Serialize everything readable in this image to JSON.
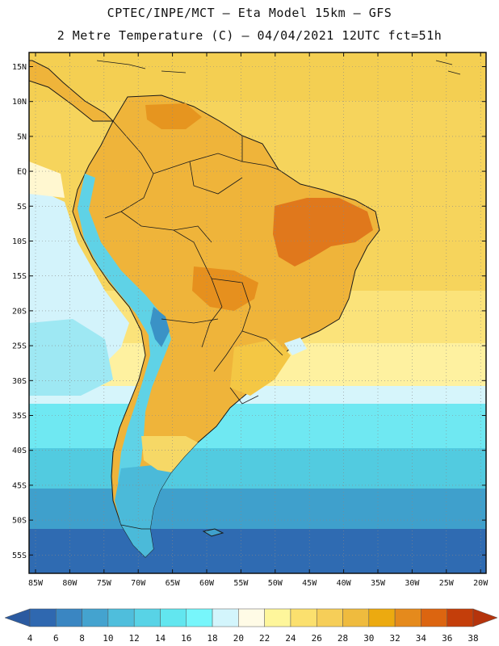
{
  "header": {
    "line1": "CPTEC/INPE/MCT –  Eta Model 15km – GFS",
    "line2": "2 Metre Temperature (C) – 04/04/2021 12UTC fct=51h"
  },
  "map": {
    "lat_labels": [
      "15N",
      "10N",
      "5N",
      "EQ",
      "5S",
      "10S",
      "15S",
      "20S",
      "25S",
      "30S",
      "35S",
      "40S",
      "45S",
      "50S",
      "55S"
    ],
    "lon_labels": [
      "85W",
      "80W",
      "75W",
      "70W",
      "65W",
      "60W",
      "55W",
      "50W",
      "45W",
      "40W",
      "35W",
      "30W",
      "25W",
      "20W"
    ]
  },
  "colorbar": {
    "ticks": [
      "4",
      "6",
      "8",
      "10",
      "12",
      "14",
      "16",
      "18",
      "20",
      "22",
      "24",
      "26",
      "28",
      "30",
      "32",
      "34",
      "36",
      "38"
    ],
    "colors": [
      "#2f68b0",
      "#3a86c2",
      "#44a3cf",
      "#4fbedc",
      "#58d3e6",
      "#62e6ef",
      "#77f6fb",
      "#d3f5fc",
      "#fffbe6",
      "#fef69b",
      "#fbe06e",
      "#f6ce58",
      "#efbb3e",
      "#ecaa10",
      "#e58a1c",
      "#dc6510",
      "#c43e0a"
    ],
    "low_color": "#2b5aa0",
    "high_color": "#b5340c"
  }
}
